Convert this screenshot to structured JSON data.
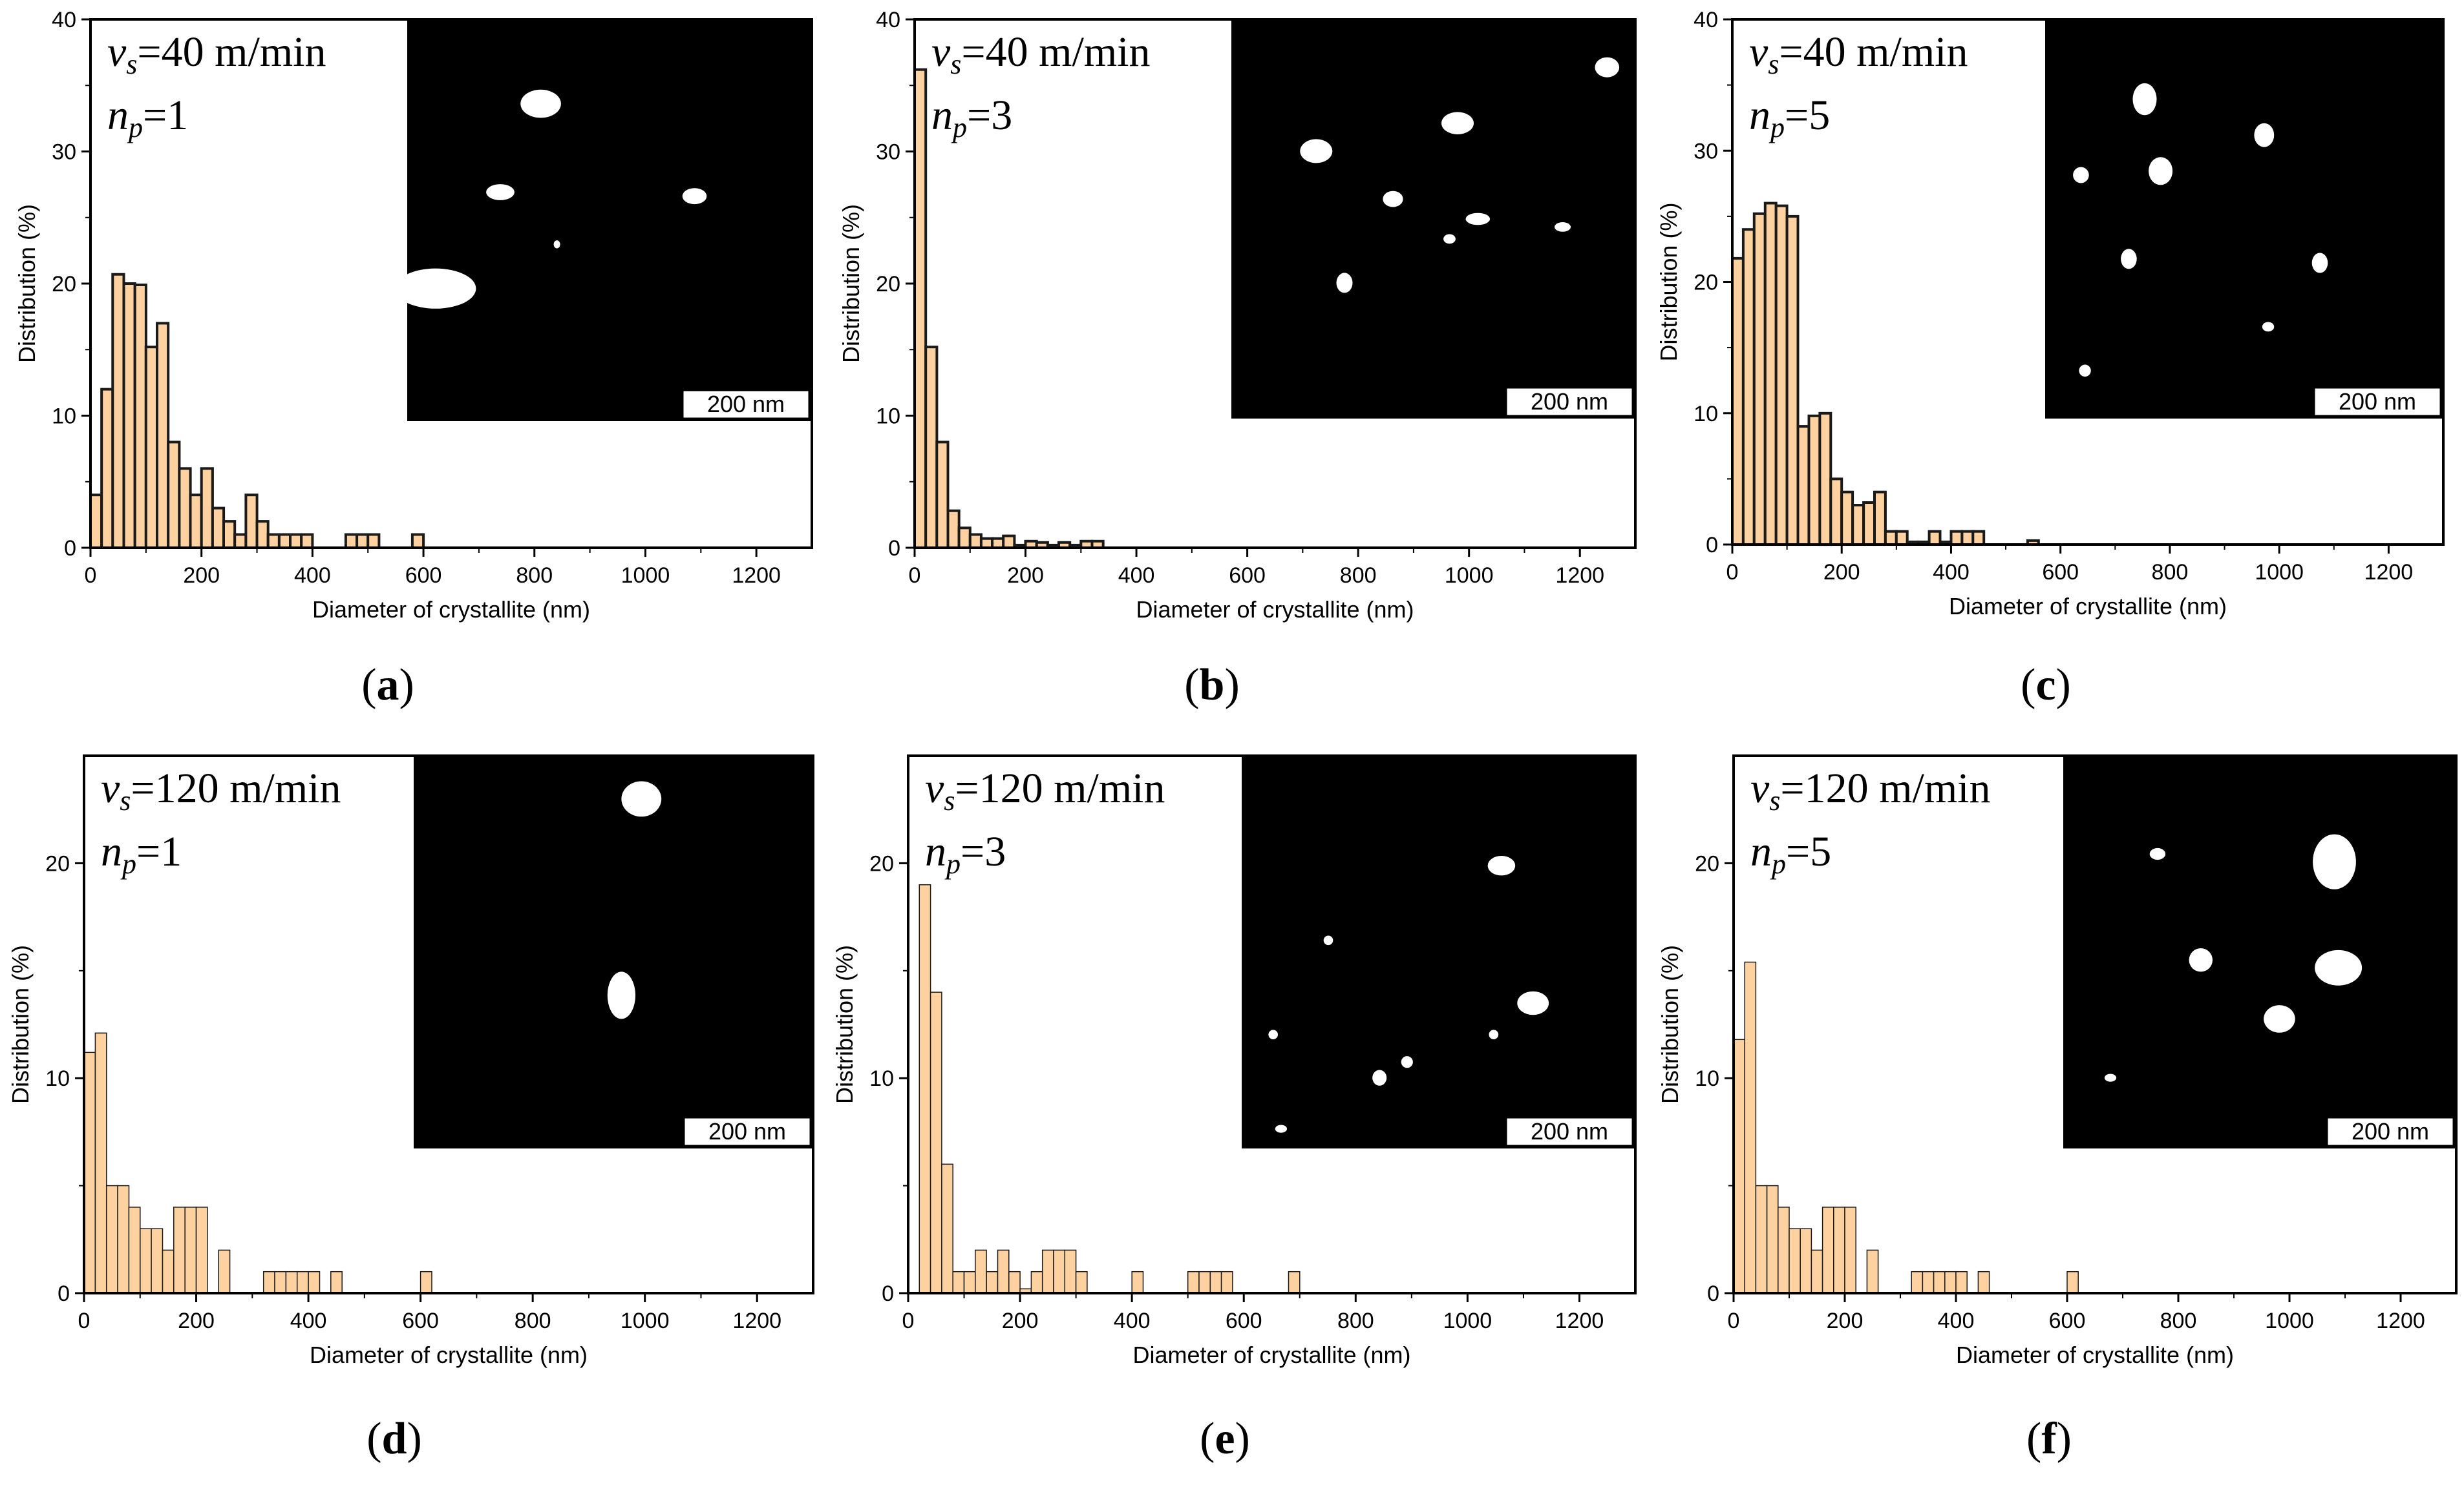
{
  "figure": {
    "x_label": "Diameter of crystallite (nm)",
    "y_label": "Distribution (%)",
    "scale_bar_label": "200 nm",
    "bar_color": "#fdd2a0",
    "bar_edge_color": "#1a1a1a",
    "annotation_v_symbol": "v",
    "annotation_v_subscript": "s",
    "annotation_n_symbol": "n",
    "annotation_n_subscript": "p"
  },
  "chart_data": [
    {
      "id": "a",
      "type": "bar",
      "caption": "a",
      "bar_outline": true,
      "speed_text": "=40 m/min",
      "passes_text": "=1",
      "xlim": [
        0,
        1300
      ],
      "ylim": [
        0,
        40
      ],
      "x_ticks": [
        0,
        200,
        400,
        600,
        800,
        1000,
        1200
      ],
      "y_ticks": [
        0,
        10,
        20,
        30,
        40
      ],
      "bin_width": 20,
      "x": [
        0,
        20,
        40,
        60,
        80,
        100,
        120,
        140,
        160,
        180,
        200,
        220,
        240,
        260,
        280,
        300,
        320,
        340,
        360,
        380,
        460,
        480,
        500,
        580
      ],
      "values": [
        4,
        12,
        20.7,
        20,
        19.9,
        15.2,
        17,
        8,
        6,
        4,
        6,
        3,
        2,
        1,
        4,
        2,
        1,
        1,
        1,
        1,
        1,
        1,
        1,
        1
      ]
    },
    {
      "id": "b",
      "type": "bar",
      "caption": "b",
      "bar_outline": true,
      "speed_text": "=40 m/min",
      "passes_text": "=3",
      "xlim": [
        0,
        1300
      ],
      "ylim": [
        0,
        40
      ],
      "x_ticks": [
        0,
        200,
        400,
        600,
        800,
        1000,
        1200
      ],
      "y_ticks": [
        0,
        10,
        20,
        30,
        40
      ],
      "bin_width": 20,
      "x": [
        0,
        20,
        40,
        60,
        80,
        100,
        120,
        140,
        160,
        180,
        200,
        220,
        240,
        260,
        280,
        300,
        320
      ],
      "values": [
        36.2,
        15.2,
        8,
        2.8,
        1.5,
        1,
        0.7,
        0.7,
        0.9,
        0.2,
        0.5,
        0.4,
        0.2,
        0.4,
        0.2,
        0.5,
        0.5
      ]
    },
    {
      "id": "c",
      "type": "bar",
      "caption": "c",
      "bar_outline": true,
      "speed_text": "=40 m/min",
      "passes_text": "=5",
      "xlim": [
        0,
        1300
      ],
      "ylim": [
        0,
        40
      ],
      "x_ticks": [
        0,
        200,
        400,
        600,
        800,
        1000,
        1200
      ],
      "y_ticks": [
        0,
        10,
        20,
        30,
        40
      ],
      "bin_width": 20,
      "x": [
        0,
        20,
        40,
        60,
        80,
        100,
        120,
        140,
        160,
        180,
        200,
        220,
        240,
        260,
        280,
        300,
        320,
        340,
        360,
        380,
        400,
        420,
        440,
        540
      ],
      "values": [
        21.8,
        24,
        25.2,
        26,
        25.8,
        25,
        9,
        9.8,
        10,
        5,
        4,
        3,
        3.2,
        4,
        1,
        1,
        0.2,
        0.2,
        1,
        0.2,
        1,
        1,
        1,
        0.3
      ]
    },
    {
      "id": "d",
      "type": "bar",
      "caption": "d",
      "bar_outline": false,
      "speed_text": "=120 m/min",
      "passes_text": "=1",
      "xlim": [
        0,
        1300
      ],
      "ylim": [
        0,
        25
      ],
      "x_ticks": [
        0,
        200,
        400,
        600,
        800,
        1000,
        1200
      ],
      "y_ticks": [
        0,
        10,
        20
      ],
      "bin_width": 20,
      "x": [
        0,
        20,
        40,
        60,
        80,
        100,
        120,
        140,
        160,
        180,
        200,
        240,
        320,
        340,
        360,
        380,
        400,
        440,
        600
      ],
      "values": [
        11.2,
        12.1,
        5,
        5,
        4,
        3,
        3,
        2,
        4,
        4,
        4,
        2,
        1,
        1,
        1,
        1,
        1,
        1,
        1
      ]
    },
    {
      "id": "e",
      "type": "bar",
      "caption": "e",
      "bar_outline": false,
      "speed_text": "=120 m/min",
      "passes_text": "=3",
      "xlim": [
        0,
        1300
      ],
      "ylim": [
        0,
        25
      ],
      "x_ticks": [
        0,
        200,
        400,
        600,
        800,
        1000,
        1200
      ],
      "y_ticks": [
        0,
        10,
        20
      ],
      "bin_width": 20,
      "x": [
        20,
        40,
        60,
        80,
        100,
        120,
        140,
        160,
        180,
        200,
        220,
        240,
        260,
        280,
        300,
        400,
        500,
        520,
        540,
        560,
        680
      ],
      "values": [
        19,
        14,
        6,
        1,
        1,
        2,
        1,
        2,
        1,
        0.2,
        1,
        2,
        2,
        2,
        1,
        1,
        1,
        1,
        1,
        1,
        1
      ]
    },
    {
      "id": "f",
      "type": "bar",
      "caption": "f",
      "bar_outline": false,
      "speed_text": "=120 m/min",
      "passes_text": "=5",
      "xlim": [
        0,
        1300
      ],
      "ylim": [
        0,
        25
      ],
      "x_ticks": [
        0,
        200,
        400,
        600,
        800,
        1000,
        1200
      ],
      "y_ticks": [
        0,
        10,
        20
      ],
      "bin_width": 20,
      "x": [
        0,
        20,
        40,
        60,
        80,
        100,
        120,
        140,
        160,
        180,
        200,
        240,
        320,
        340,
        360,
        380,
        400,
        440,
        600
      ],
      "values": [
        11.8,
        15.4,
        5,
        5,
        4,
        3,
        3,
        2,
        4,
        4,
        4,
        2,
        1,
        1,
        1,
        1,
        1,
        1,
        1
      ]
    }
  ]
}
